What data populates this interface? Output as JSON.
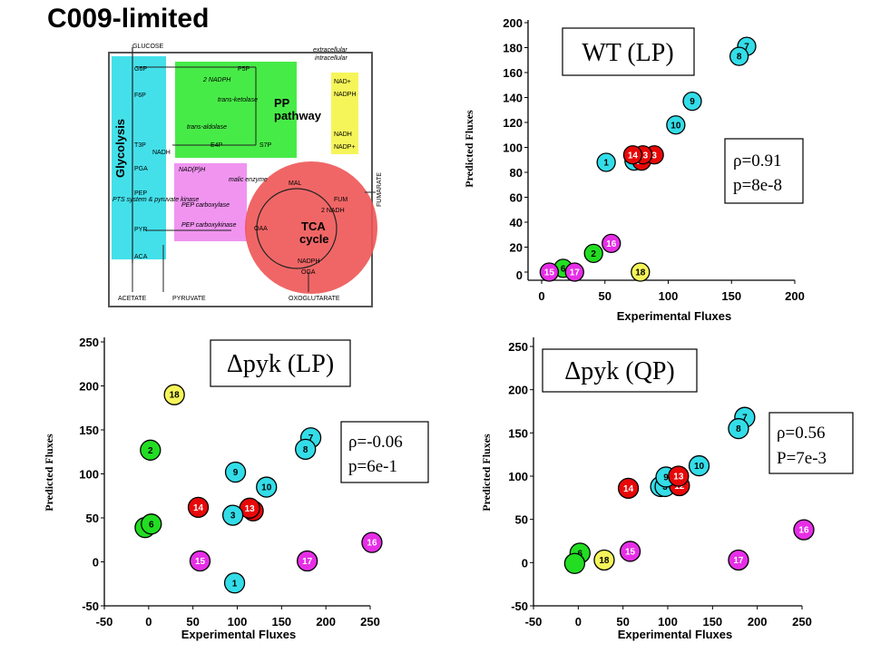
{
  "title": "C009-limited",
  "colors": {
    "cyan": "#33dde8",
    "red": "#e80808",
    "green": "#22dd22",
    "magenta": "#e62ee6",
    "yellow": "#f5f55a"
  },
  "map": {
    "glucose": "GLUCOSE",
    "extracellular": "extracellular",
    "intracellular": "intracellular",
    "glycolysis": "Glycolysis",
    "pp": "PP",
    "pathway": "pathway",
    "tca": "TCA",
    "cycle": "cycle",
    "acetate": "ACETATE",
    "pyruvate": "PYRUVATE",
    "oxoglutarate": "OXOGLUTARATE",
    "fumarate": "FUMARATE",
    "g6p": "G6P",
    "f6p": "F6P",
    "t3p": "T3P",
    "pga": "PGA",
    "pep": "PEP",
    "pyr": "PYR",
    "aca": "ACA",
    "p5p": "P5P",
    "e4p": "E4P",
    "s7p": "S7P",
    "mal": "MAL",
    "fum": "FUM",
    "oaa": "OAA",
    "oga": "OGA",
    "nadph_2": "2 NADPH",
    "nadh": "NADH",
    "nadph_tca": "NADPH",
    "nadh_2": "2 NADH",
    "nadp_h": "NAD(P)H",
    "nad_plus": "NAD+",
    "nadph_right": "NADPH",
    "nadh_right": "NADH",
    "nadp_plus": "NADP+",
    "malic": "malic enzyme",
    "pep_carboxylase": "PEP carboxylase",
    "pep_carboxykinase": "PEP carboxykinase",
    "pts": "PTS system & pyruvate kinase",
    "transketolase": "trans-ketolase",
    "transaldolase": "trans-aldolase"
  },
  "chart_data": [
    {
      "id": "wt",
      "type": "scatter",
      "box_title": "WT (LP)",
      "stats": [
        "ρ=0.91",
        "p=8e-8"
      ],
      "xlabel": "Experimental Fluxes",
      "ylabel": "Predicted Fluxes",
      "xlim": [
        0,
        200
      ],
      "ylim": [
        0,
        200
      ],
      "xticks": [
        "0",
        "50",
        "100",
        "150",
        "200"
      ],
      "yticks": [
        "0",
        "20",
        "40",
        "60",
        "80",
        "100",
        "120",
        "140",
        "160",
        "180",
        "200"
      ],
      "grid": false,
      "points": [
        {
          "label": "7",
          "x": 162,
          "y": 181,
          "color": "cyan"
        },
        {
          "label": "8",
          "x": 156,
          "y": 173,
          "color": "cyan"
        },
        {
          "label": "9",
          "x": 119,
          "y": 137,
          "color": "cyan"
        },
        {
          "label": "10",
          "x": 106,
          "y": 118,
          "color": "cyan"
        },
        {
          "label": "",
          "x": 73,
          "y": 89,
          "color": "cyan"
        },
        {
          "label": "1",
          "x": 51,
          "y": 88,
          "color": "cyan"
        },
        {
          "label": "12",
          "x": 79,
          "y": 89,
          "color": "red"
        },
        {
          "label": "3",
          "x": 89,
          "y": 94,
          "color": "red"
        },
        {
          "label": "13",
          "x": 80,
          "y": 94,
          "color": "red"
        },
        {
          "label": "14",
          "x": 72,
          "y": 94,
          "color": "red"
        },
        {
          "label": "16",
          "x": 55,
          "y": 23,
          "color": "magenta"
        },
        {
          "label": "2",
          "x": 41,
          "y": 15,
          "color": "green"
        },
        {
          "label": "6",
          "x": 17,
          "y": 3,
          "color": "green"
        },
        {
          "label": "15",
          "x": 6,
          "y": 0,
          "color": "magenta"
        },
        {
          "label": "17",
          "x": 26,
          "y": 0,
          "color": "magenta"
        },
        {
          "label": "18",
          "x": 78,
          "y": 0,
          "color": "yellow"
        }
      ]
    },
    {
      "id": "pyk-lp",
      "type": "scatter",
      "box_title": "Δpyk (LP)",
      "stats": [
        "ρ=-0.06",
        "p=6e-1"
      ],
      "xlabel": "Experimental Fluxes",
      "ylabel": "Predicted Fluxes",
      "xlim": [
        -50,
        250
      ],
      "ylim": [
        -50,
        250
      ],
      "xticks": [
        "-50",
        "0",
        "50",
        "100",
        "150",
        "200",
        "250"
      ],
      "yticks": [
        "-50",
        "0",
        "50",
        "100",
        "150",
        "200",
        "250"
      ],
      "grid": false,
      "points": [
        {
          "label": "18",
          "x": 29,
          "y": 190,
          "color": "yellow"
        },
        {
          "label": "7",
          "x": 183,
          "y": 141,
          "color": "cyan"
        },
        {
          "label": "8",
          "x": 177,
          "y": 128,
          "color": "cyan"
        },
        {
          "label": "2",
          "x": 2,
          "y": 127,
          "color": "green"
        },
        {
          "label": "9",
          "x": 98,
          "y": 102,
          "color": "cyan"
        },
        {
          "label": "10",
          "x": 133,
          "y": 85,
          "color": "cyan"
        },
        {
          "label": "14",
          "x": 56,
          "y": 62,
          "color": "red"
        },
        {
          "label": "",
          "x": 118,
          "y": 58,
          "color": "red"
        },
        {
          "label": "13",
          "x": 114,
          "y": 61,
          "color": "red"
        },
        {
          "label": "3",
          "x": 95,
          "y": 53,
          "color": "cyan"
        },
        {
          "label": "",
          "x": -4,
          "y": 39,
          "color": "green"
        },
        {
          "label": "6",
          "x": 3,
          "y": 43,
          "color": "green"
        },
        {
          "label": "16",
          "x": 252,
          "y": 22,
          "color": "magenta"
        },
        {
          "label": "15",
          "x": 58,
          "y": 1,
          "color": "magenta"
        },
        {
          "label": "17",
          "x": 179,
          "y": 1,
          "color": "magenta"
        },
        {
          "label": "1",
          "x": 97,
          "y": -24,
          "color": "cyan"
        }
      ]
    },
    {
      "id": "pyk-qp",
      "type": "scatter",
      "box_title": "Δpyk (QP)",
      "stats": [
        "ρ=0.56",
        "P=7e-3"
      ],
      "xlabel": "Experimental Fluxes",
      "ylabel": "Predicted Fluxes",
      "xlim": [
        -50,
        250
      ],
      "ylim": [
        -50,
        250
      ],
      "xticks": [
        "-50",
        "0",
        "50",
        "100",
        "150",
        "200",
        "250"
      ],
      "yticks": [
        "-50",
        "0",
        "50",
        "100",
        "150",
        "200",
        "250"
      ],
      "grid": false,
      "points": [
        {
          "label": "7",
          "x": 186,
          "y": 168,
          "color": "cyan"
        },
        {
          "label": "8",
          "x": 179,
          "y": 155,
          "color": "cyan"
        },
        {
          "label": "10",
          "x": 135,
          "y": 112,
          "color": "cyan"
        },
        {
          "label": "",
          "x": 92,
          "y": 88,
          "color": "cyan"
        },
        {
          "label": "3",
          "x": 97,
          "y": 88,
          "color": "cyan"
        },
        {
          "label": "12",
          "x": 113,
          "y": 89,
          "color": "red"
        },
        {
          "label": "9",
          "x": 98,
          "y": 99,
          "color": "cyan"
        },
        {
          "label": "13",
          "x": 112,
          "y": 100,
          "color": "red"
        },
        {
          "label": "14",
          "x": 56,
          "y": 86,
          "color": "red"
        },
        {
          "label": "16",
          "x": 252,
          "y": 38,
          "color": "magenta"
        },
        {
          "label": "6",
          "x": 2,
          "y": 11,
          "color": "green"
        },
        {
          "label": "",
          "x": -4,
          "y": -1,
          "color": "green"
        },
        {
          "label": "18",
          "x": 29,
          "y": 3,
          "color": "yellow"
        },
        {
          "label": "15",
          "x": 58,
          "y": 13,
          "color": "magenta"
        },
        {
          "label": "17",
          "x": 179,
          "y": 3,
          "color": "magenta"
        }
      ]
    }
  ]
}
